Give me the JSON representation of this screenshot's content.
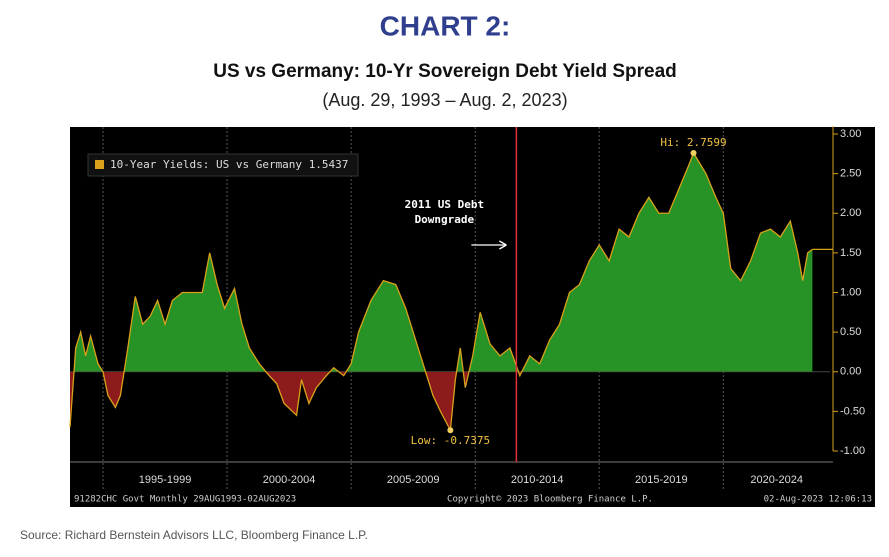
{
  "chart_data": {
    "type": "area",
    "title": "CHART 2:",
    "subtitle": "US vs Germany: 10-Yr Sovereign Debt Yield Spread",
    "date_range": "(Aug. 29, 1993 – Aug. 2, 2023)",
    "source": "Source: Richard Bernstein Advisors LLC, Bloomberg Finance L.P.",
    "footer_left": "91282CHC Govt  Monthly 29AUG1993-02AUG2023",
    "footer_center": "Copyright© 2023 Bloomberg Finance L.P.",
    "footer_right": "02-Aug-2023 12:06:13",
    "x": [
      1993.67,
      1993.9,
      1994.1,
      1994.3,
      1994.5,
      1994.8,
      1995.0,
      1995.2,
      1995.5,
      1995.7,
      1996.0,
      1996.3,
      1996.6,
      1996.9,
      1997.2,
      1997.5,
      1997.8,
      1998.2,
      1998.6,
      1999.0,
      1999.3,
      1999.6,
      1999.9,
      2000.3,
      2000.6,
      2000.9,
      2001.3,
      2001.7,
      2002.0,
      2002.3,
      2002.8,
      2003.0,
      2003.3,
      2003.6,
      2004.0,
      2004.3,
      2004.7,
      2005.0,
      2005.3,
      2005.8,
      2006.3,
      2006.8,
      2007.2,
      2007.6,
      2008.0,
      2008.3,
      2008.6,
      2009.0,
      2009.2,
      2009.4,
      2009.6,
      2009.9,
      2010.2,
      2010.6,
      2011.0,
      2011.4,
      2011.8,
      2012.2,
      2012.6,
      2013.0,
      2013.4,
      2013.8,
      2014.2,
      2014.6,
      2015.0,
      2015.4,
      2015.8,
      2016.2,
      2016.6,
      2017.0,
      2017.4,
      2017.8,
      2018.2,
      2018.6,
      2018.8,
      2019.3,
      2019.7,
      2020.0,
      2020.3,
      2020.7,
      2021.1,
      2021.5,
      2021.9,
      2022.3,
      2022.7,
      2023.0,
      2023.2,
      2023.4,
      2023.59
    ],
    "series": [
      {
        "name": "10-Year Yields: US vs Germany",
        "color": "#d9a21b",
        "above_color": "#279327",
        "below_color": "#8e1b1b",
        "values": [
          -0.7,
          0.3,
          0.5,
          0.2,
          0.45,
          0.1,
          0.0,
          -0.3,
          -0.45,
          -0.3,
          0.3,
          0.95,
          0.6,
          0.7,
          0.9,
          0.6,
          0.9,
          1.0,
          1.0,
          1.0,
          1.5,
          1.1,
          0.8,
          1.05,
          0.6,
          0.3,
          0.1,
          -0.05,
          -0.15,
          -0.4,
          -0.55,
          -0.1,
          -0.4,
          -0.2,
          -0.05,
          0.05,
          -0.05,
          0.1,
          0.5,
          0.9,
          1.15,
          1.1,
          0.8,
          0.4,
          0.0,
          -0.3,
          -0.5,
          -0.7375,
          -0.1,
          0.3,
          -0.2,
          0.2,
          0.75,
          0.35,
          0.2,
          0.3,
          -0.05,
          0.2,
          0.1,
          0.4,
          0.6,
          1.0,
          1.1,
          1.4,
          1.6,
          1.4,
          1.8,
          1.7,
          2.0,
          2.2,
          2.0,
          2.0,
          2.3,
          2.6,
          2.7599,
          2.5,
          2.2,
          2.0,
          1.3,
          1.15,
          1.4,
          1.75,
          1.8,
          1.7,
          1.9,
          1.5,
          1.15,
          1.5,
          1.5437
        ]
      }
    ],
    "xlim": [
      1993.67,
      2024.3
    ],
    "ylim": [
      -1.0,
      3.1
    ],
    "yticks": [
      {
        "value": 3,
        "label": "3.00"
      },
      {
        "value": 2.5,
        "label": "2.50"
      },
      {
        "value": 2,
        "label": "2.00"
      },
      {
        "value": 1.5,
        "label": "1.50"
      },
      {
        "value": 1,
        "label": "1.00"
      },
      {
        "value": 0.5,
        "label": "0.50"
      },
      {
        "value": 0,
        "label": "0.00"
      },
      {
        "value": -0.5,
        "label": "-0.50"
      },
      {
        "value": -1,
        "label": "-1.00"
      }
    ],
    "x_bands": [
      {
        "label": "1995-1999",
        "from": 1995,
        "to": 2000
      },
      {
        "label": "2000-2004",
        "from": 2000,
        "to": 2005
      },
      {
        "label": "2005-2009",
        "from": 2005,
        "to": 2010
      },
      {
        "label": "2010-2014",
        "from": 2010,
        "to": 2015
      },
      {
        "label": "2015-2019",
        "from": 2015,
        "to": 2020
      },
      {
        "label": "2020-2024",
        "from": 2020,
        "to": 2024.3
      }
    ],
    "annotations": [
      {
        "text": "Hi: 2.7599",
        "x": 2018.8,
        "y": 2.7599
      },
      {
        "text": "Low: -0.7375",
        "x": 2009.0,
        "y": -0.7375
      }
    ],
    "event": {
      "lines": [
        "2011 US Debt",
        "Downgrade"
      ],
      "x": 2011.66
    }
  }
}
